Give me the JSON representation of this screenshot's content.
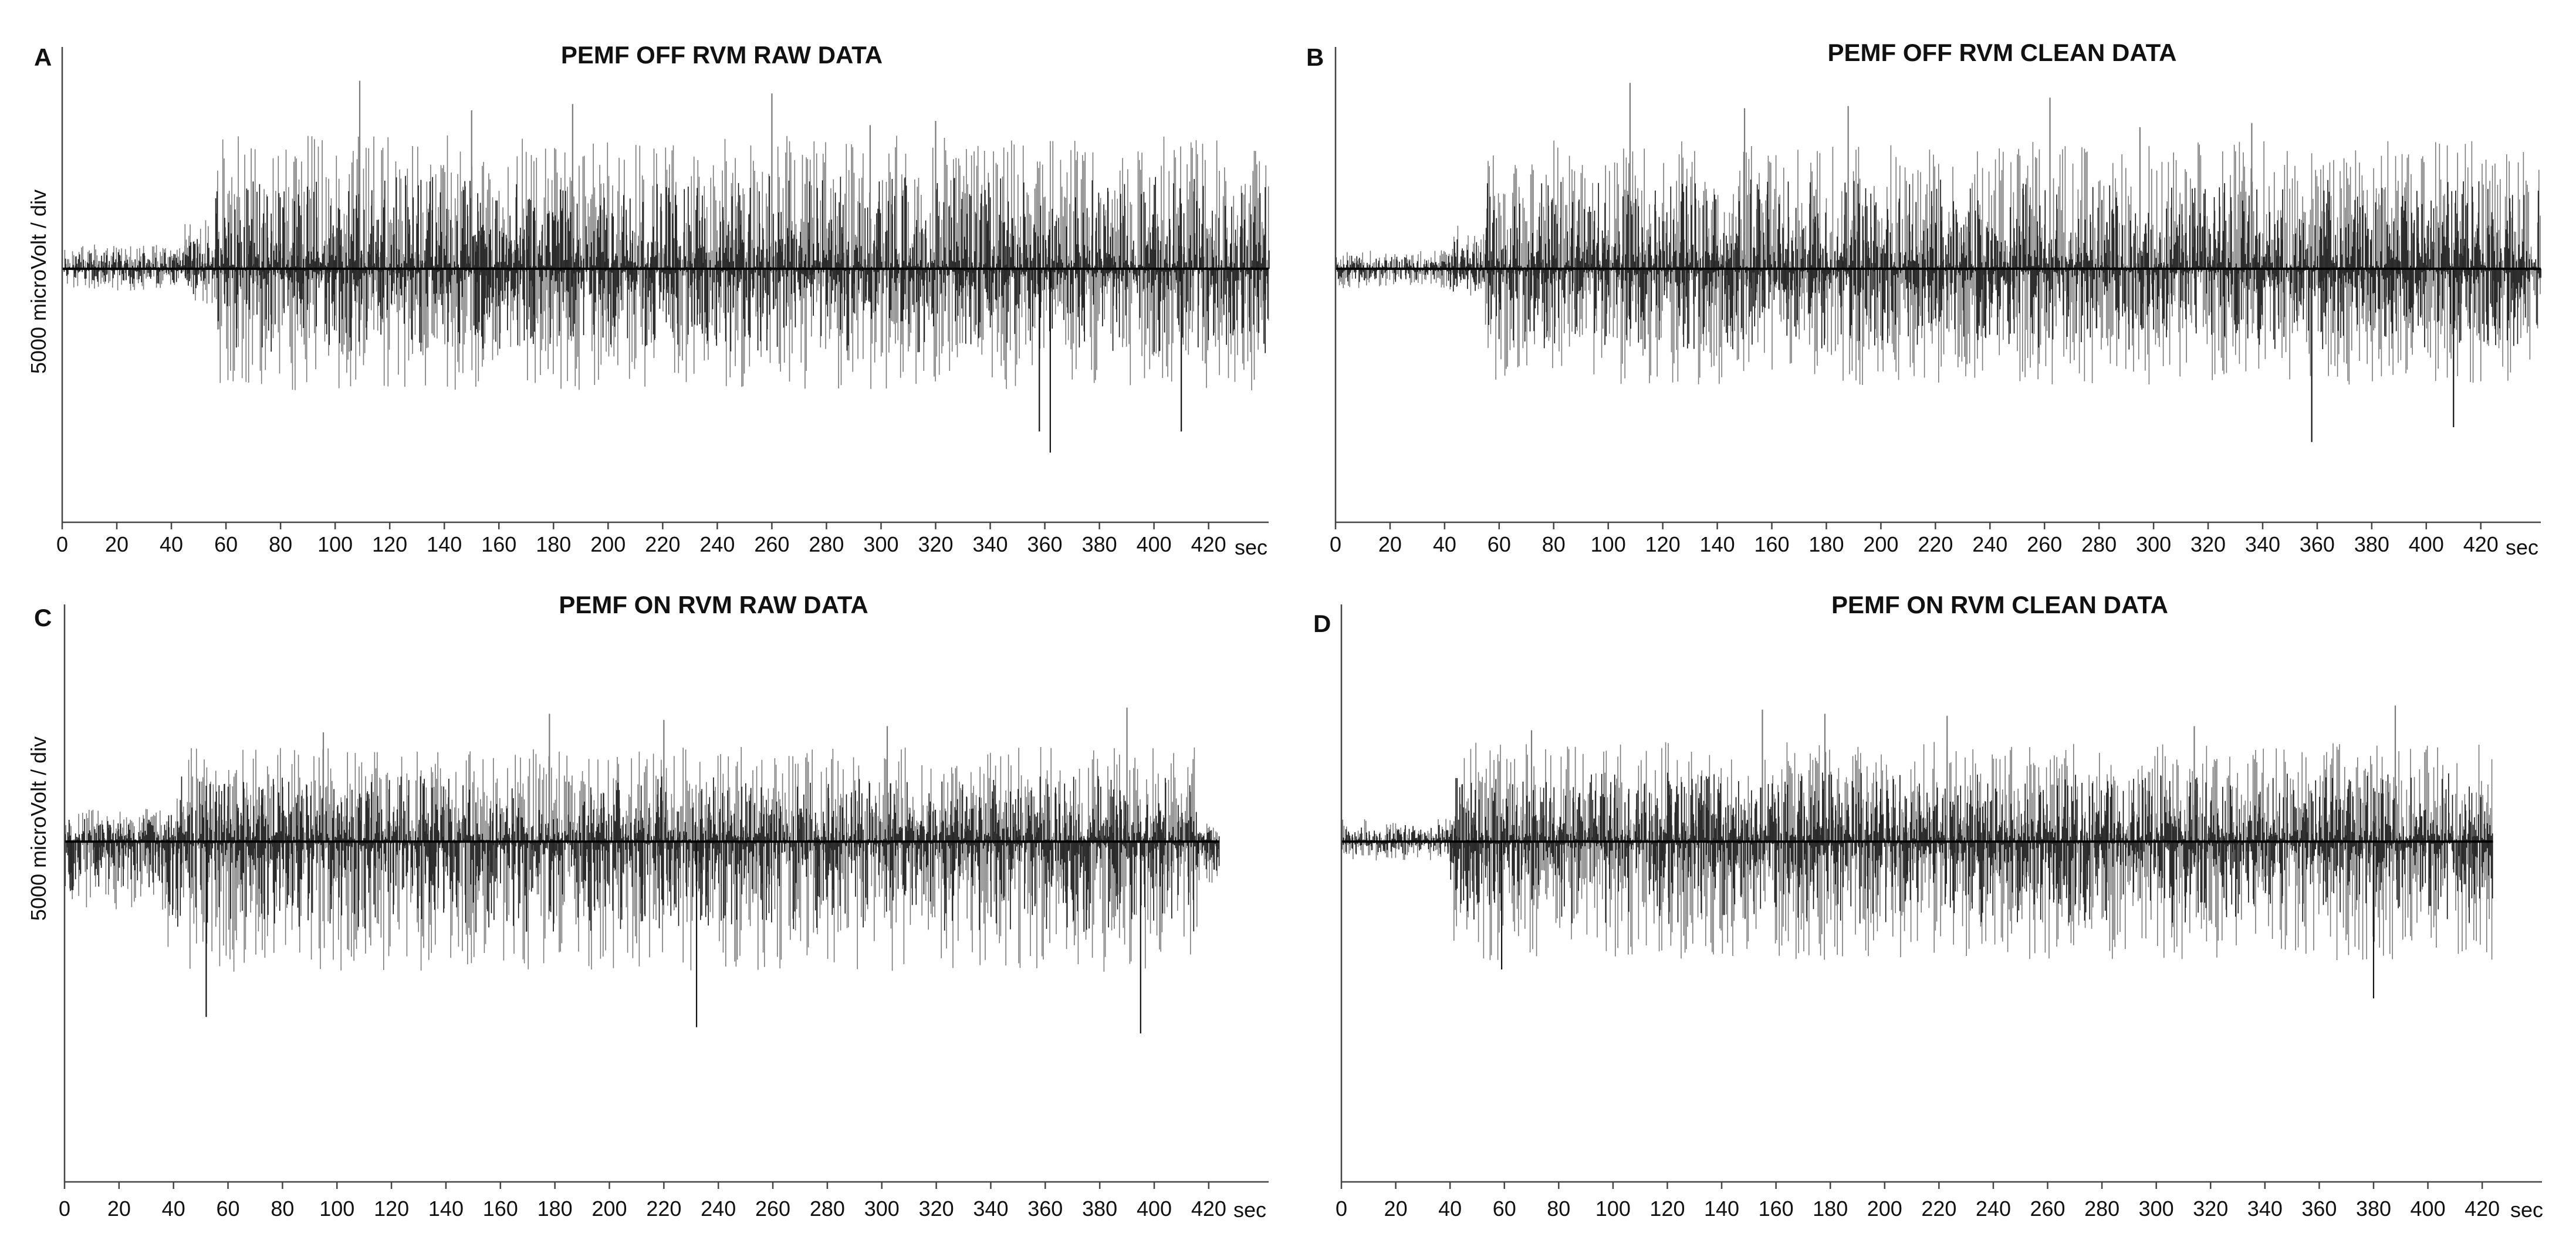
{
  "chart_data": [
    {
      "type": "line",
      "panel": "A",
      "title": "PEMF OFF RVM RAW DATA",
      "xlabel": "sec",
      "ylabel": "5000 microVolt / div",
      "x_ticks": [
        0,
        20,
        40,
        60,
        80,
        100,
        120,
        140,
        160,
        180,
        200,
        220,
        240,
        260,
        280,
        300,
        320,
        340,
        360,
        380,
        400,
        420
      ],
      "xlim": [
        0,
        442
      ],
      "ylim": [
        -12000,
        10500
      ],
      "grid": false,
      "series": [
        {
          "color_dark": "#111111",
          "color_light": "#7a7a7a",
          "segments": [
            {
              "x_start": 0,
              "x_end": 45,
              "amplitude_pos": 1000,
              "amplitude_neg": 900
            },
            {
              "x_start": 45,
              "x_end": 56,
              "amplitude_pos": 2000,
              "amplitude_neg": 1500
            },
            {
              "x_start": 56,
              "x_end": 442,
              "amplitude_pos": 5500,
              "amplitude_neg": 5000
            }
          ],
          "peaks": [
            {
              "x": 109,
              "y": 8900
            },
            {
              "x": 150,
              "y": 7500
            },
            {
              "x": 187,
              "y": 7800
            },
            {
              "x": 260,
              "y": 8300
            },
            {
              "x": 362,
              "y": -8700
            },
            {
              "x": 320,
              "y": 7000
            },
            {
              "x": 358,
              "y": -7700
            },
            {
              "x": 410,
              "y": -7700
            },
            {
              "x": 296,
              "y": 6800
            }
          ]
        }
      ]
    },
    {
      "type": "line",
      "panel": "B",
      "title": "PEMF OFF RVM CLEAN DATA",
      "xlabel": "sec",
      "ylabel": "",
      "x_ticks": [
        0,
        20,
        40,
        60,
        80,
        100,
        120,
        140,
        160,
        180,
        200,
        220,
        240,
        260,
        280,
        300,
        320,
        340,
        360,
        380,
        400,
        420
      ],
      "xlim": [
        0,
        442
      ],
      "ylim": [
        -12000,
        10500
      ],
      "grid": false,
      "series": [
        {
          "color_dark": "#111111",
          "color_light": "#7a7a7a",
          "segments": [
            {
              "x_start": 0,
              "x_end": 42,
              "amplitude_pos": 800,
              "amplitude_neg": 800
            },
            {
              "x_start": 42,
              "x_end": 55,
              "amplitude_pos": 1800,
              "amplitude_neg": 1400
            },
            {
              "x_start": 55,
              "x_end": 442,
              "amplitude_pos": 5300,
              "amplitude_neg": 4800
            }
          ],
          "peaks": [
            {
              "x": 108,
              "y": 8800
            },
            {
              "x": 150,
              "y": 7600
            },
            {
              "x": 188,
              "y": 7700
            },
            {
              "x": 262,
              "y": 8100
            },
            {
              "x": 358,
              "y": -8200
            },
            {
              "x": 336,
              "y": 6900
            },
            {
              "x": 410,
              "y": -7500
            },
            {
              "x": 295,
              "y": 6700
            }
          ]
        }
      ]
    },
    {
      "type": "line",
      "panel": "C",
      "title": "PEMF ON RVM RAW DATA",
      "xlabel": "sec",
      "ylabel": "5000 microVolt / div",
      "x_ticks": [
        0,
        20,
        40,
        60,
        80,
        100,
        120,
        140,
        160,
        180,
        200,
        220,
        240,
        260,
        280,
        300,
        320,
        340,
        360,
        380,
        400,
        420
      ],
      "xlim": [
        0,
        442
      ],
      "ylim": [
        -16500,
        11500
      ],
      "grid": false,
      "series": [
        {
          "color_dark": "#111111",
          "color_light": "#7a7a7a",
          "segments": [
            {
              "x_start": 0,
              "x_end": 38,
              "amplitude_pos": 1400,
              "amplitude_neg": 3000
            },
            {
              "x_start": 38,
              "x_end": 416,
              "amplitude_pos": 4000,
              "amplitude_neg": 5500
            },
            {
              "x_start": 416,
              "x_end": 424,
              "amplitude_pos": 800,
              "amplitude_neg": 1800
            }
          ],
          "peaks": [
            {
              "x": 95,
              "y": 5300
            },
            {
              "x": 178,
              "y": 6200
            },
            {
              "x": 220,
              "y": 5900
            },
            {
              "x": 232,
              "y": -9000
            },
            {
              "x": 390,
              "y": 6500
            },
            {
              "x": 395,
              "y": -9300
            },
            {
              "x": 52,
              "y": -8500
            },
            {
              "x": 302,
              "y": 5600
            }
          ]
        }
      ]
    },
    {
      "type": "line",
      "panel": "D",
      "title": "PEMF ON RVM CLEAN DATA",
      "xlabel": "sec",
      "ylabel": "",
      "x_ticks": [
        0,
        20,
        40,
        60,
        80,
        100,
        120,
        140,
        160,
        180,
        200,
        220,
        240,
        260,
        280,
        300,
        320,
        340,
        360,
        380,
        400,
        420
      ],
      "xlim": [
        0,
        442
      ],
      "ylim": [
        -16500,
        11500
      ],
      "grid": false,
      "series": [
        {
          "color_dark": "#111111",
          "color_light": "#7a7a7a",
          "segments": [
            {
              "x_start": 0,
              "x_end": 40,
              "amplitude_pos": 1000,
              "amplitude_neg": 800
            },
            {
              "x_start": 40,
              "x_end": 424,
              "amplitude_pos": 4200,
              "amplitude_neg": 5000
            }
          ],
          "peaks": [
            {
              "x": 70,
              "y": 5400
            },
            {
              "x": 155,
              "y": 6400
            },
            {
              "x": 178,
              "y": 6200
            },
            {
              "x": 223,
              "y": 6100
            },
            {
              "x": 388,
              "y": 6600
            },
            {
              "x": 380,
              "y": -7600
            },
            {
              "x": 59,
              "y": -6200
            },
            {
              "x": 314,
              "y": 5600
            }
          ]
        }
      ]
    }
  ]
}
